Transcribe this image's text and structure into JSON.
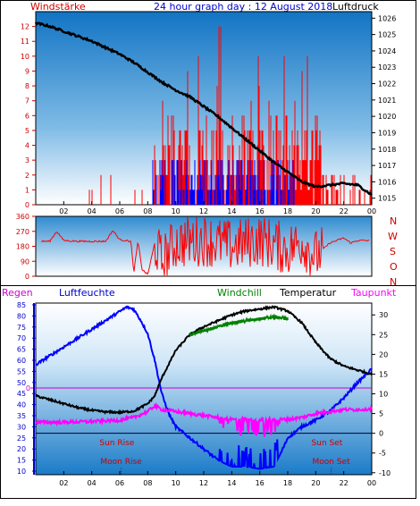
{
  "header": {
    "title": "24 hour graph day : 12 August 2018",
    "left_label": "Windstärke",
    "right_label": "Luftdruck"
  },
  "top_axes": {
    "wind_ticks": [
      "0",
      "1",
      "2",
      "3",
      "4",
      "5",
      "6",
      "7",
      "8",
      "9",
      "10",
      "11",
      "12"
    ],
    "pressure_ticks": [
      "1015",
      "1016",
      "1017",
      "1018",
      "1019",
      "1020",
      "1021",
      "1022",
      "1023",
      "1024",
      "1025",
      "1026"
    ],
    "time_ticks": [
      "02",
      "04",
      "06",
      "08",
      "10",
      "12",
      "14",
      "16",
      "18",
      "20",
      "22",
      "00"
    ]
  },
  "dir_axes": {
    "left_ticks": [
      "0",
      "90",
      "180",
      "270",
      "360"
    ],
    "right_labels": [
      "N",
      "W",
      "S",
      "O",
      "N"
    ]
  },
  "bottom_header": {
    "regen": "Regen",
    "luftfeuchte": "Luftfeuchte",
    "windchill": "Windchill",
    "temperatur": "Temperatur",
    "taupunkt": "Taupunkt"
  },
  "bottom_axes": {
    "humidity_ticks": [
      "10",
      "15",
      "20",
      "25",
      "30",
      "35",
      "40",
      "45",
      "50",
      "55",
      "60",
      "65",
      "70",
      "75",
      "80",
      "85"
    ],
    "temp_ticks": [
      "-10",
      "-5",
      "0",
      "5",
      "10",
      "15",
      "20",
      "25",
      "30"
    ],
    "rain_label": "0",
    "time_ticks": [
      "02",
      "04",
      "06",
      "08",
      "10",
      "12",
      "14",
      "16",
      "18",
      "20",
      "22",
      "00"
    ]
  },
  "sun_moon": {
    "sun_rise": "Sun Rise",
    "sun_set": "Sun Set",
    "moon_rise": "Moon Rise",
    "moon_set": "Moon Set",
    "sun_rise_h": 5.8,
    "sun_set_h": 20.8,
    "moon_rise_h": 6.1,
    "moon_set_h": 21.1
  },
  "colors": {
    "wind_axis": "#cc0000",
    "pressure_axis": "#000000",
    "wind_bars": "#ff0000",
    "gust_bars": "#0000ff",
    "pressure_line": "#000000",
    "direction": "#ff0000",
    "humidity": "#0000ff",
    "temperature": "#000000",
    "windchill": "#008000",
    "dewpoint": "#ff00ff",
    "rain": "#cc00cc",
    "header_title": "#0000cc",
    "regen": "#cc00cc",
    "luftfeuchte": "#0000cc",
    "windchill_label": "#008000",
    "taupunkt": "#ff00ff"
  },
  "chart_data": [
    {
      "type": "line",
      "title": "24 hour graph day : 12 August 2018",
      "x_unit": "hour",
      "x_range": [
        0,
        24
      ],
      "y_left_label": "Windstärke",
      "y_left_range": [
        0,
        13
      ],
      "y_right_label": "Luftdruck",
      "y_right_range": [
        1014.6,
        1026.4
      ],
      "series": [
        {
          "name": "Luftdruck",
          "axis": "right",
          "x": [
            0,
            1,
            2,
            3,
            4,
            5,
            6,
            7,
            8,
            9,
            10,
            11,
            12,
            13,
            14,
            15,
            16,
            17,
            18,
            19,
            20,
            21,
            22,
            23,
            24
          ],
          "values": [
            1025.7,
            1025.5,
            1025.2,
            1024.9,
            1024.6,
            1024.2,
            1023.8,
            1023.3,
            1022.7,
            1022.1,
            1021.6,
            1021.2,
            1020.6,
            1020.0,
            1019.3,
            1018.6,
            1017.9,
            1017.2,
            1016.6,
            1016.0,
            1015.7,
            1015.8,
            1015.9,
            1015.8,
            1015.2
          ]
        }
      ]
    },
    {
      "type": "line",
      "x_unit": "hour",
      "x_range": [
        0,
        24
      ],
      "y_range": [
        0,
        360
      ],
      "series": [
        {
          "x": [
            0,
            1,
            1.5,
            2,
            3,
            5,
            5.5,
            6,
            6.8,
            7,
            7.3,
            7.6,
            8,
            8.5,
            9,
            10,
            12,
            14,
            16,
            18,
            19,
            20,
            21,
            22,
            22.5,
            23,
            24
          ],
          "values": [
            210,
            210,
            270,
            215,
            210,
            210,
            275,
            220,
            210,
            20,
            210,
            40,
            10,
            200,
            90,
            200,
            220,
            180,
            220,
            160,
            210,
            120,
            200,
            230,
            200,
            215,
            215
          ]
        }
      ]
    },
    {
      "type": "line",
      "x_unit": "hour",
      "x_range": [
        0,
        24
      ],
      "y_left_label": "Luftfeuchte",
      "y_left_range": [
        10,
        85
      ],
      "y_right_label": "Temperatur",
      "y_right_range": [
        -10.5,
        33
      ],
      "series": [
        {
          "name": "Luftfeuchte",
          "axis": "left",
          "x": [
            0,
            1,
            2,
            3,
            4,
            5,
            6,
            6.5,
            7,
            7.5,
            8,
            8.5,
            9,
            9.5,
            10,
            11,
            12,
            13,
            14,
            15,
            16,
            17,
            17.5,
            18,
            19,
            20,
            21,
            22,
            23,
            24
          ],
          "values": [
            58,
            62,
            66,
            70,
            74,
            78,
            82,
            84,
            83,
            78,
            72,
            60,
            45,
            36,
            30,
            25,
            20,
            15,
            12,
            12,
            11,
            12,
            18,
            25,
            30,
            33,
            37,
            43,
            50,
            56
          ]
        },
        {
          "name": "Temperatur",
          "axis": "right",
          "x": [
            0,
            1,
            2,
            3,
            4,
            5,
            6,
            7,
            8,
            8.5,
            9,
            10,
            11,
            12,
            13,
            14,
            15,
            16,
            17,
            18,
            19,
            20,
            21,
            22,
            23,
            24
          ],
          "values": [
            9.5,
            8.5,
            7.5,
            6.5,
            5.8,
            5.4,
            5.3,
            5.6,
            7.5,
            9.5,
            14,
            21,
            25,
            27,
            28.5,
            30,
            31,
            31.5,
            32,
            31,
            28,
            23,
            19,
            17,
            16,
            15
          ]
        },
        {
          "name": "Windchill",
          "axis": "right",
          "x": [
            11,
            12,
            13,
            14,
            15,
            16,
            17,
            18
          ],
          "values": [
            25,
            26,
            27,
            28,
            28.5,
            29,
            29.5,
            29
          ]
        },
        {
          "name": "Taupunkt",
          "axis": "right",
          "x": [
            0,
            2,
            4,
            6,
            7,
            8,
            8.5,
            9,
            10,
            11,
            12,
            13,
            14,
            15,
            16,
            17,
            18,
            19,
            20,
            21,
            22,
            23,
            24
          ],
          "values": [
            2.8,
            2.8,
            3.0,
            3.3,
            4.0,
            5.5,
            7.0,
            6.0,
            5.5,
            5.0,
            4.5,
            4.0,
            3.5,
            3.5,
            3.5,
            3.5,
            3.5,
            4.0,
            5.0,
            5.5,
            6.0,
            6.0,
            6.2
          ]
        },
        {
          "name": "Regen",
          "axis": "rain",
          "x": [
            0,
            24
          ],
          "values": [
            0,
            0
          ]
        }
      ]
    }
  ]
}
